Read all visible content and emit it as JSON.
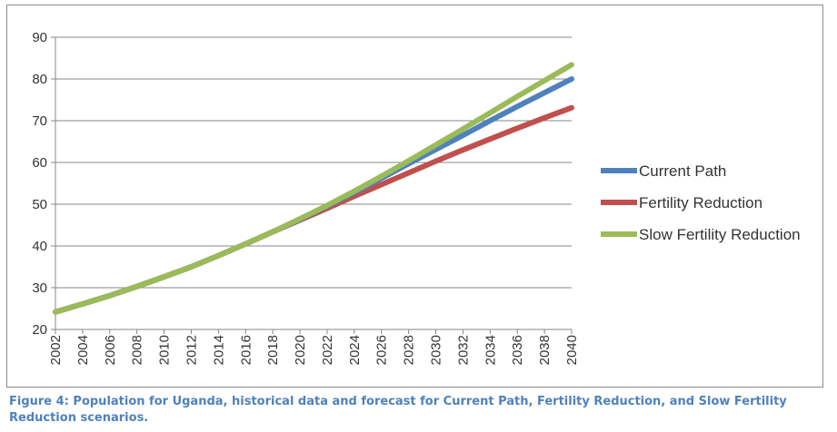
{
  "chart_data": {
    "type": "line",
    "x": [
      2002,
      2004,
      2006,
      2008,
      2010,
      2012,
      2014,
      2016,
      2018,
      2020,
      2022,
      2024,
      2026,
      2028,
      2030,
      2032,
      2034,
      2036,
      2038,
      2040
    ],
    "xticks": [
      "2002",
      "2004",
      "2006",
      "2008",
      "2010",
      "2012",
      "2014",
      "2016",
      "2018",
      "2020",
      "2022",
      "2024",
      "2026",
      "2028",
      "2030",
      "2032",
      "2034",
      "2036",
      "2038",
      "2040"
    ],
    "yticks": [
      "20",
      "30",
      "40",
      "50",
      "60",
      "70",
      "80",
      "90"
    ],
    "ylim": [
      20,
      90
    ],
    "xlim": [
      2002,
      2040
    ],
    "grid": true,
    "legend_position": "right",
    "series": [
      {
        "name": "Current Path",
        "color": "#4f81bd",
        "values": [
          24.2,
          26.1,
          28.1,
          30.3,
          32.6,
          35.0,
          37.7,
          40.5,
          43.4,
          46.4,
          49.5,
          52.8,
          56.2,
          59.7,
          63.1,
          66.5,
          70.0,
          73.4,
          76.7,
          80.0
        ]
      },
      {
        "name": "Fertility Reduction",
        "color": "#c0504d",
        "values": [
          24.2,
          26.1,
          28.1,
          30.3,
          32.6,
          35.0,
          37.7,
          40.5,
          43.4,
          46.2,
          49.0,
          51.9,
          54.7,
          57.5,
          60.3,
          63.0,
          65.6,
          68.2,
          70.7,
          73.1
        ]
      },
      {
        "name": "Slow Fertility Reduction",
        "color": "#9bbb59",
        "values": [
          24.2,
          26.1,
          28.1,
          30.3,
          32.6,
          35.0,
          37.7,
          40.5,
          43.4,
          46.5,
          49.7,
          53.1,
          56.7,
          60.4,
          64.2,
          68.0,
          71.9,
          75.8,
          79.6,
          83.4
        ]
      }
    ]
  },
  "caption": "Figure 4:  Population for Uganda, historical data and forecast for Current Path, Fertility Reduction, and Slow Fertility Reduction scenarios."
}
